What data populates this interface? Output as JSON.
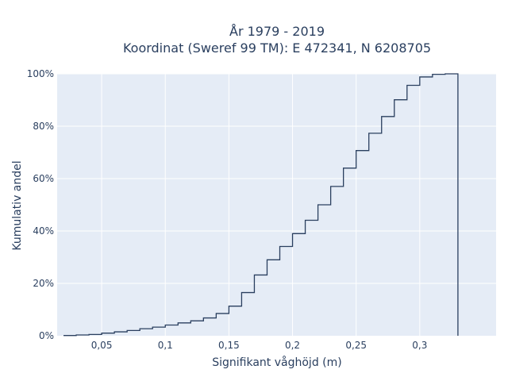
{
  "chart_data": {
    "type": "line",
    "line_shape": "step",
    "title_line1": "År 1979 - 2019",
    "title_line2": "Koordinat (Sweref 99 TM): E 472341, N 6208705",
    "xlabel": "Signifikant våghöjd (m)",
    "ylabel": "Kumulativ andel",
    "xlim": [
      0.015,
      0.36
    ],
    "ylim": [
      0,
      1.0
    ],
    "x_ticks": [
      {
        "value": 0.05,
        "label": "0,05"
      },
      {
        "value": 0.1,
        "label": "0,1"
      },
      {
        "value": 0.15,
        "label": "0,15"
      },
      {
        "value": 0.2,
        "label": "0,2"
      },
      {
        "value": 0.25,
        "label": "0,25"
      },
      {
        "value": 0.3,
        "label": "0,3"
      }
    ],
    "y_ticks": [
      {
        "value": 0,
        "label": "0%"
      },
      {
        "value": 0.2,
        "label": "20%"
      },
      {
        "value": 0.4,
        "label": "40%"
      },
      {
        "value": 0.6,
        "label": "60%"
      },
      {
        "value": 0.8,
        "label": "80%"
      },
      {
        "value": 1.0,
        "label": "100%"
      }
    ],
    "grid": true,
    "colors": {
      "plot_bg": "#e5ecf6",
      "grid": "#ffffff",
      "line": "#2a3f5f",
      "text": "#2a3f5f"
    },
    "bin_width": 0.01,
    "bin_edges_start": 0.02,
    "series": [
      {
        "x_start": [
          0.02,
          0.03,
          0.04,
          0.05,
          0.06,
          0.07,
          0.08,
          0.09,
          0.1,
          0.11,
          0.12,
          0.13,
          0.14,
          0.15,
          0.16,
          0.17,
          0.18,
          0.19,
          0.2,
          0.21,
          0.22,
          0.23,
          0.24,
          0.25,
          0.26,
          0.27,
          0.28,
          0.29,
          0.3,
          0.31,
          0.32
        ],
        "y": [
          0.001,
          0.003,
          0.005,
          0.01,
          0.015,
          0.02,
          0.027,
          0.033,
          0.041,
          0.049,
          0.057,
          0.068,
          0.085,
          0.113,
          0.165,
          0.232,
          0.29,
          0.341,
          0.39,
          0.441,
          0.5,
          0.57,
          0.64,
          0.707,
          0.773,
          0.837,
          0.901,
          0.956,
          0.988,
          0.998,
          1.0
        ]
      }
    ]
  }
}
